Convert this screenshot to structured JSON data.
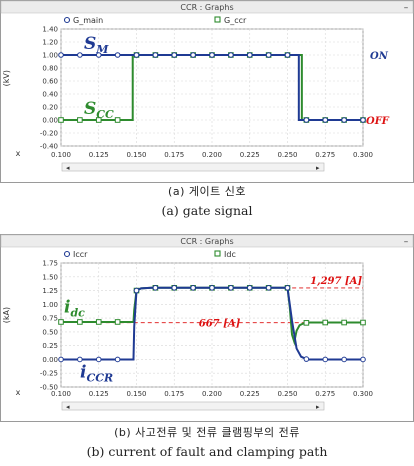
{
  "figure": {
    "caption_a_ko": "(a) 게이트 신호",
    "caption_a_en": "(a) gate signal",
    "caption_b_ko": "(b) 사고전류 및 전류 클램핑부의 전류",
    "caption_b_en": "(b) current of fault and clamping path"
  },
  "chart_data": [
    {
      "type": "line",
      "panel_title": "CCR : Graphs",
      "x_tick_labels": [
        "0.100",
        "0.125",
        "0.150",
        "0.175",
        "0.200",
        "0.225",
        "0.250",
        "0.275",
        "0.300"
      ],
      "x_axis_symbol": "x",
      "ylabel": "(kV)",
      "ylim": [
        -0.4,
        1.4
      ],
      "y_ticks": [
        -0.4,
        -0.2,
        0,
        0.2,
        0.4,
        0.6,
        0.8,
        1.0,
        1.2,
        1.4
      ],
      "y_tick_labels": [
        "-0.40",
        "-0.20",
        "0.00",
        "0.20",
        "0.40",
        "0.60",
        "0.80",
        "1.00",
        "1.20",
        "1.40"
      ],
      "xlim": [
        0.1,
        0.3
      ],
      "grid": true,
      "legend_position": "top",
      "series": [
        {
          "name": "G_main",
          "color": "#1f3a93",
          "marker": "circle",
          "x": [
            0.1,
            0.2575,
            0.2575,
            0.3
          ],
          "y": [
            1.0,
            1.0,
            0.0,
            0.0
          ]
        },
        {
          "name": "G_ccr",
          "color": "#2e8b2e",
          "marker": "square",
          "x": [
            0.1,
            0.1475,
            0.1475,
            0.2595,
            0.2595,
            0.3
          ],
          "y": [
            0.0,
            0.0,
            1.0,
            1.0,
            0.0,
            0.0
          ]
        }
      ],
      "annotations": {
        "s_m": "S",
        "s_m_sub": "M",
        "s_cc": "S",
        "s_cc_sub": "CC",
        "on": "ON",
        "off": "OFF"
      }
    },
    {
      "type": "line",
      "panel_title": "CCR : Graphs",
      "x_tick_labels": [
        "0.100",
        "0.125",
        "0.150",
        "0.175",
        "0.200",
        "0.225",
        "0.250",
        "0.275",
        "0.300"
      ],
      "x_axis_symbol": "x",
      "ylabel": "(kA)",
      "ylim": [
        -0.5,
        1.75
      ],
      "y_ticks": [
        -0.5,
        -0.25,
        0,
        0.25,
        0.5,
        0.75,
        1.0,
        1.25,
        1.5,
        1.75
      ],
      "y_tick_labels": [
        "-0.50",
        "-0.25",
        "0.00",
        "0.25",
        "0.50",
        "0.75",
        "1.00",
        "1.25",
        "1.50",
        "1.75"
      ],
      "xlim": [
        0.1,
        0.3
      ],
      "grid": true,
      "legend_position": "top",
      "series": [
        {
          "name": "Iccr",
          "color": "#1f3a93",
          "marker": "circle",
          "x": [
            0.1,
            0.148,
            0.1485,
            0.15,
            0.153,
            0.16,
            0.2,
            0.25,
            0.253,
            0.256,
            0.259,
            0.263,
            0.3
          ],
          "y": [
            0.0,
            0.0,
            0.6,
            1.25,
            1.29,
            1.3,
            1.3,
            1.3,
            0.7,
            0.2,
            0.05,
            0.0,
            0.0
          ]
        },
        {
          "name": "Idc",
          "color": "#2e8b2e",
          "marker": "square",
          "x": [
            0.1,
            0.148,
            0.1485,
            0.15,
            0.153,
            0.16,
            0.2,
            0.25,
            0.2515,
            0.253,
            0.2545,
            0.256,
            0.258,
            0.261,
            0.265,
            0.3
          ],
          "y": [
            0.68,
            0.68,
            0.9,
            1.25,
            1.29,
            1.3,
            1.3,
            1.3,
            0.95,
            0.45,
            0.32,
            0.52,
            0.62,
            0.66,
            0.67,
            0.67
          ]
        }
      ],
      "annotations": {
        "i_dc": "i",
        "i_dc_sub": "dc",
        "i_ccr": "i",
        "i_ccr_sub": "CCR",
        "peak_label": "1,297 [A]",
        "peak_value": 1.297,
        "steady_label": "667 [A]",
        "steady_value": 0.667
      }
    }
  ]
}
